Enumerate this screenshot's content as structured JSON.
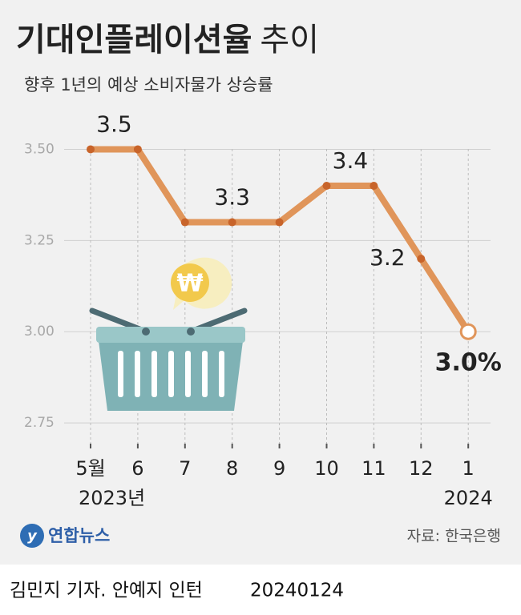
{
  "chart_data": {
    "type": "line",
    "title": "기대인플레이션율",
    "title_suffix": "추이",
    "subtitle": "향후 1년의 예상 소비자물가 상승률",
    "categories": [
      "5월",
      "6",
      "7",
      "8",
      "9",
      "10",
      "11",
      "12",
      "1"
    ],
    "year_labels": [
      "2023년",
      "2024"
    ],
    "series": [
      {
        "name": "기대인플레이션율",
        "color": "#e0955a",
        "values": [
          3.5,
          3.5,
          3.3,
          3.3,
          3.3,
          3.4,
          3.4,
          3.2,
          3.0
        ],
        "value_labels": [
          "3.5",
          null,
          null,
          "3.3",
          null,
          "3.4",
          null,
          "3.2",
          "3.0%"
        ]
      }
    ],
    "ylim": [
      2.68,
      3.58
    ],
    "yticks": [
      {
        "value": 2.75,
        "label": "2.75"
      },
      {
        "value": 3.0,
        "label": "3.00"
      },
      {
        "value": 3.25,
        "label": "3.25"
      },
      {
        "value": 3.5,
        "label": "3.50"
      }
    ],
    "grid": true,
    "logo": "연합뉴스",
    "source": "자료: 한국은행",
    "byline": "김민지 기자. 안예지 인턴",
    "date": "20240124"
  }
}
